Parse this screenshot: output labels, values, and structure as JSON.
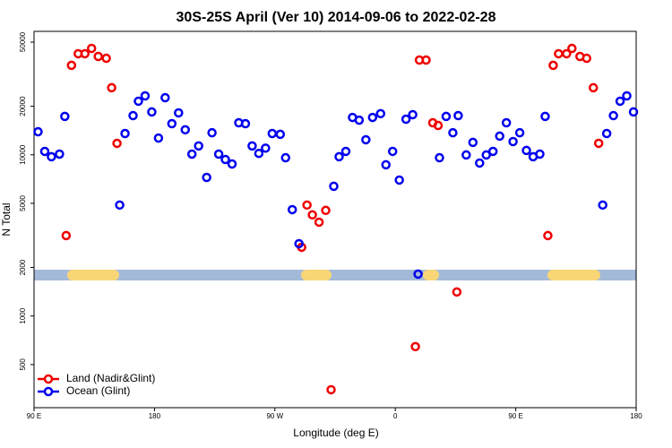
{
  "chart_data": {
    "type": "scatter",
    "title": "30S-25S April (Ver 10)   2014-09-06 to 2022-02-28",
    "xlabel": "Longitude (deg E)",
    "ylabel": "N Total",
    "xlim": [
      90,
      540
    ],
    "ylim": [
      270,
      58300
    ],
    "ylog": true,
    "xticks": [
      {
        "value": 90,
        "label": "90 E"
      },
      {
        "value": 180,
        "label": "180"
      },
      {
        "value": 270,
        "label": "90 W"
      },
      {
        "value": 360,
        "label": "0"
      },
      {
        "value": 450,
        "label": "90 E"
      },
      {
        "value": 540,
        "label": "180"
      }
    ],
    "yticks": [
      500,
      1000,
      2000,
      5000,
      10000,
      20000,
      50000
    ],
    "legend": "bottom-left",
    "series": [
      {
        "name": "Land (Nadir&Glint)",
        "color": "#ee0000",
        "x": [
          114,
          118,
          123,
          128,
          133,
          138,
          144,
          148,
          152,
          290,
          294,
          298,
          303,
          308,
          312,
          375,
          378,
          383,
          388,
          392,
          406,
          474,
          478,
          482,
          488,
          492,
          498,
          503,
          508,
          512
        ],
        "values": [
          3155,
          35900,
          42370,
          42370,
          45700,
          40740,
          39700,
          26060,
          11780,
          2670,
          4880,
          4240,
          3820,
          4520,
          349,
          646,
          38700,
          38700,
          15800,
          15200,
          1410,
          3155,
          35900,
          42370,
          42370,
          45700,
          40740,
          39700,
          26060,
          11780
        ]
      },
      {
        "name": "Ocean (Glint)",
        "color": "#0000ee",
        "x": [
          93,
          98,
          103,
          109,
          113,
          154,
          158,
          164,
          168,
          173,
          178,
          183,
          188,
          193,
          198,
          203,
          208,
          213,
          219,
          223,
          228,
          233,
          238,
          243,
          248,
          253,
          258,
          263,
          268,
          274,
          278,
          283,
          288,
          314,
          318,
          323,
          328,
          333,
          338,
          343,
          349,
          353,
          358,
          363,
          368,
          373,
          377,
          393,
          398,
          403,
          407,
          413,
          418,
          423,
          428,
          433,
          438,
          443,
          448,
          453,
          458,
          463,
          468,
          472,
          515,
          518,
          523,
          528,
          533,
          538
        ],
        "values": [
          13900,
          10500,
          9730,
          10100,
          17300,
          4880,
          13550,
          17500,
          21500,
          23200,
          18450,
          12700,
          22600,
          15600,
          18200,
          14300,
          10100,
          11350,
          7240,
          13700,
          10100,
          9350,
          8770,
          15800,
          15600,
          11350,
          10200,
          11000,
          13550,
          13400,
          9590,
          4570,
          2810,
          6380,
          9730,
          10500,
          17050,
          16400,
          12400,
          17050,
          18000,
          8670,
          10500,
          6970,
          16630,
          17740,
          1820,
          9590,
          17300,
          13700,
          17500,
          9980,
          11940,
          8890,
          9980,
          10500,
          13060,
          15800,
          12080,
          13700,
          10640,
          9730,
          10100,
          17300,
          4880,
          13550,
          17500,
          21500,
          23200,
          18450
        ]
      }
    ]
  }
}
